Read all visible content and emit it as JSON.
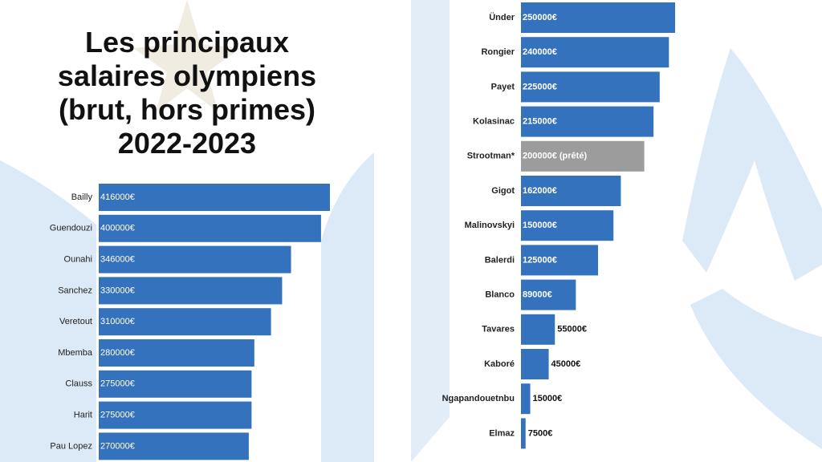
{
  "chart_data": [
    {
      "type": "bar",
      "orientation": "horizontal",
      "title": "Les principaux salaires olympiens (brut, hors primes) 2022-2023",
      "categories": [
        "Bailly",
        "Guendouzi",
        "Ounahi",
        "Sanchez",
        "Veretout",
        "Mbemba",
        "Clauss",
        "Harit",
        "Pau Lopez"
      ],
      "values": [
        416000,
        400000,
        346000,
        330000,
        310000,
        280000,
        275000,
        275000,
        270000
      ],
      "value_labels": [
        "416000€",
        "400000€",
        "346000€",
        "330000€",
        "310000€",
        "280000€",
        "275000€",
        "275000€",
        "270000€"
      ],
      "colors": [
        "#3572be",
        "#3572be",
        "#3572be",
        "#3572be",
        "#3572be",
        "#3572be",
        "#3572be",
        "#3572be",
        "#3572be"
      ]
    },
    {
      "type": "bar",
      "orientation": "horizontal",
      "categories": [
        "Ünder",
        "Rongier",
        "Payet",
        "Kolasinac",
        "Strootman*",
        "Gigot",
        "Malinovskyi",
        "Balerdi",
        "Blanco",
        "Tavares",
        "Kaboré",
        "Ngapandouetnbu",
        "Elmaz"
      ],
      "values": [
        250000,
        240000,
        225000,
        215000,
        200000,
        162000,
        150000,
        125000,
        89000,
        55000,
        45000,
        15000,
        7500
      ],
      "value_labels": [
        "250000€",
        "240000€",
        "225000€",
        "215000€",
        "200000€ (prêté)",
        "162000€",
        "150000€",
        "125000€",
        "89000€",
        "55000€",
        "45000€",
        "15000€",
        "7500€"
      ],
      "colors": [
        "#3572be",
        "#3572be",
        "#3572be",
        "#3572be",
        "#9c9c9c",
        "#3572be",
        "#3572be",
        "#3572be",
        "#3572be",
        "#3572be",
        "#3572be",
        "#3572be",
        "#3572be"
      ]
    }
  ]
}
